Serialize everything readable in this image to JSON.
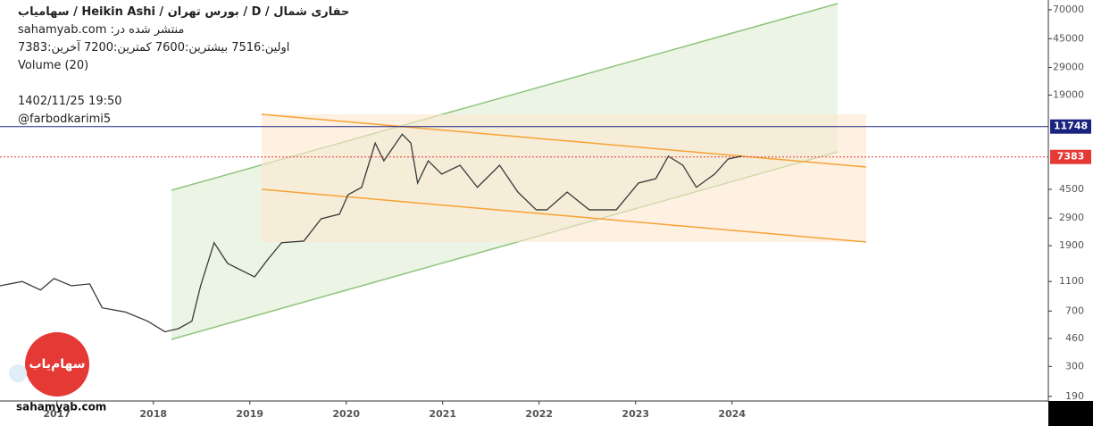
{
  "header": {
    "title": "حفاری شمال / D / بورس تهران / Heikin Ashi / سهامیاب",
    "published": "منتشر شده در: sahamyab.com",
    "ohlc": "اولین:7516  بیشترین:7600  کمترین:7200  آخرین:7383",
    "volume": "Volume (20)",
    "date": "1402/11/25 19:50",
    "author": "@farbodkarimi5"
  },
  "logo": {
    "text": "سهام‌یاب",
    "site": "sahamyab.com"
  },
  "chart_data": {
    "type": "line",
    "log_scale": true,
    "grid": false,
    "series": [
      {
        "name": "حفاری شمال",
        "color": "#3a3a3a",
        "x": [
          2016.41,
          2016.64,
          2016.83,
          2016.97,
          2017.15,
          2017.34,
          2017.47,
          2017.71,
          2017.94,
          2018.12,
          2018.26,
          2018.4,
          2018.49,
          2018.63,
          2018.77,
          2019.05,
          2019.19,
          2019.33,
          2019.56,
          2019.74,
          2019.93,
          2020.02,
          2020.16,
          2020.3,
          2020.39,
          2020.58,
          2020.67,
          2020.74,
          2020.85,
          2020.99,
          2021.18,
          2021.36,
          2021.59,
          2021.78,
          2021.97,
          2022.08,
          2022.29,
          2022.52,
          2022.8,
          2023.03,
          2023.21,
          2023.34,
          2023.49,
          2023.63,
          2023.82,
          2023.96,
          2024.1
        ],
        "values": [
          1030,
          1100,
          965,
          1150,
          1030,
          1060,
          735,
          690,
          600,
          510,
          535,
          600,
          1030,
          1990,
          1450,
          1180,
          1550,
          1990,
          2040,
          2870,
          3080,
          4150,
          4640,
          9130,
          6960,
          10450,
          9130,
          4950,
          6960,
          5680,
          6500,
          4640,
          6500,
          4310,
          3290,
          3290,
          4310,
          3290,
          3290,
          4950,
          5300,
          7470,
          6500,
          4640,
          5680,
          7160,
          7470
        ]
      }
    ],
    "xlim": [
      2016.41,
      2027.28
    ],
    "xticks": [
      2017,
      2018,
      2019,
      2020,
      2021,
      2022,
      2023,
      2024
    ],
    "ylim": [
      177,
      81300
    ],
    "yticks": [
      190,
      300,
      460,
      700,
      1100,
      1900,
      2900,
      4500,
      19000,
      29000,
      45000,
      70000
    ],
    "price_lines": [
      {
        "value": 11748,
        "color": "#1a237e"
      },
      {
        "value": 7383,
        "color": "#e53935"
      }
    ]
  }
}
